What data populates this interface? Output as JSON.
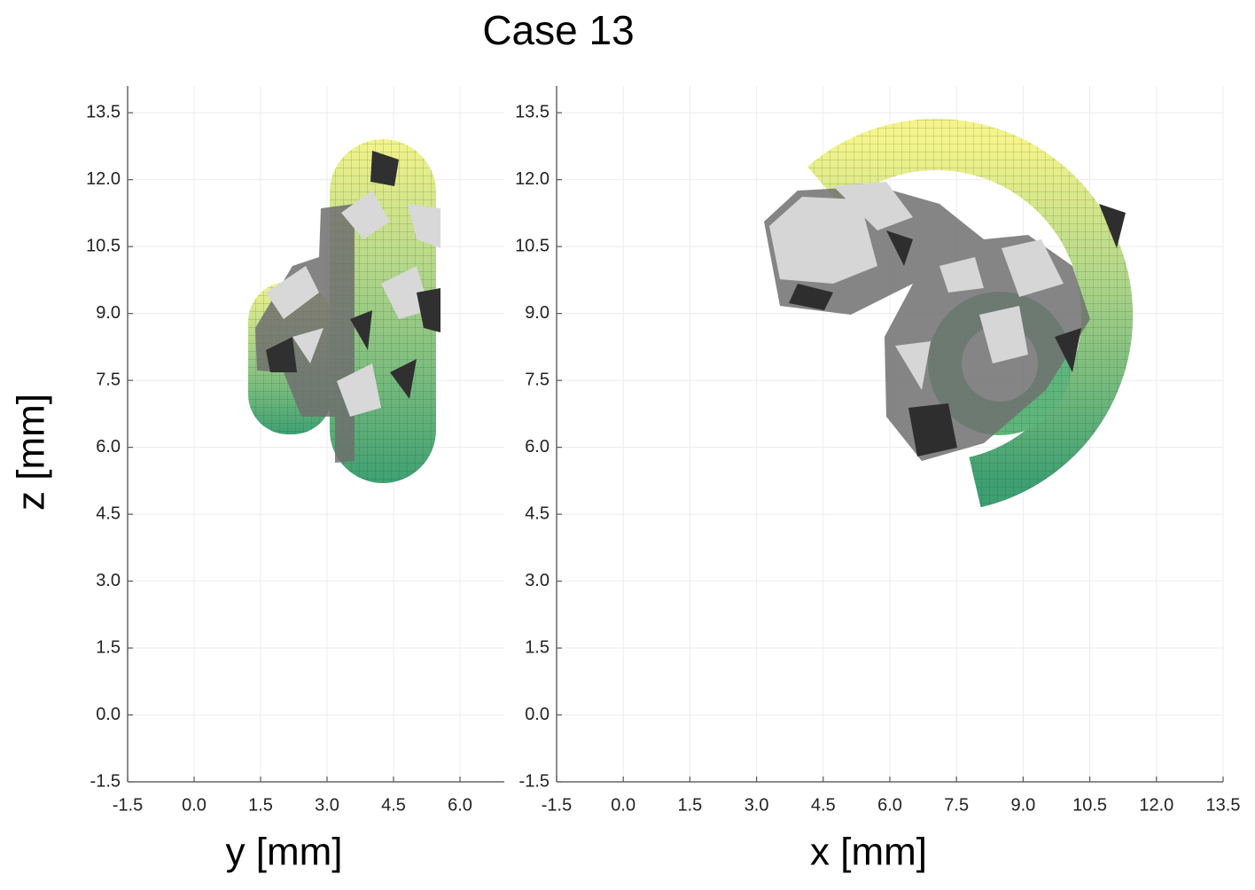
{
  "title": "Case 13",
  "chart_data": [
    {
      "type": "projection",
      "xlabel": "y [mm]",
      "ylabel": "z [mm]",
      "xlim": [
        -1.5,
        7.0
      ],
      "ylim": [
        -1.5,
        14.1
      ],
      "xticks": [
        -1.5,
        {
          "value": 0,
          "label": "0.0"
        },
        1.5,
        {
          "value": 3,
          "label": "3.0"
        },
        4.5,
        {
          "value": 6,
          "label": "6.0"
        }
      ],
      "yticks": [
        -1.5,
        {
          "value": 0,
          "label": "0.0"
        },
        1.5,
        {
          "value": 3,
          "label": "3.0"
        },
        4.5,
        {
          "value": 6,
          "label": "6.0"
        },
        7.5,
        {
          "value": 9,
          "label": "9.0"
        },
        10.5,
        {
          "value": 12,
          "label": "12.0"
        },
        13.5
      ],
      "grid": true
    },
    {
      "type": "projection",
      "xlabel": "x [mm]",
      "xlim": [
        -1.5,
        13.5
      ],
      "ylim": [
        -1.5,
        14.1
      ],
      "xticks": [
        -1.5,
        {
          "value": 0,
          "label": "0.0"
        },
        1.5,
        {
          "value": 3,
          "label": "3.0"
        },
        4.5,
        {
          "value": 6,
          "label": "6.0"
        },
        7.5,
        {
          "value": 9,
          "label": "9.0"
        },
        10.5,
        {
          "value": 12,
          "label": "12.0"
        },
        13.5
      ],
      "yticks": [
        -1.5,
        {
          "value": 0,
          "label": "0.0"
        },
        1.5,
        {
          "value": 3,
          "label": "3.0"
        },
        4.5,
        {
          "value": 6,
          "label": "6.0"
        },
        7.5,
        {
          "value": 9,
          "label": "9.0"
        },
        10.5,
        {
          "value": 12,
          "label": "12.0"
        },
        13.5
      ],
      "grid": true
    }
  ]
}
